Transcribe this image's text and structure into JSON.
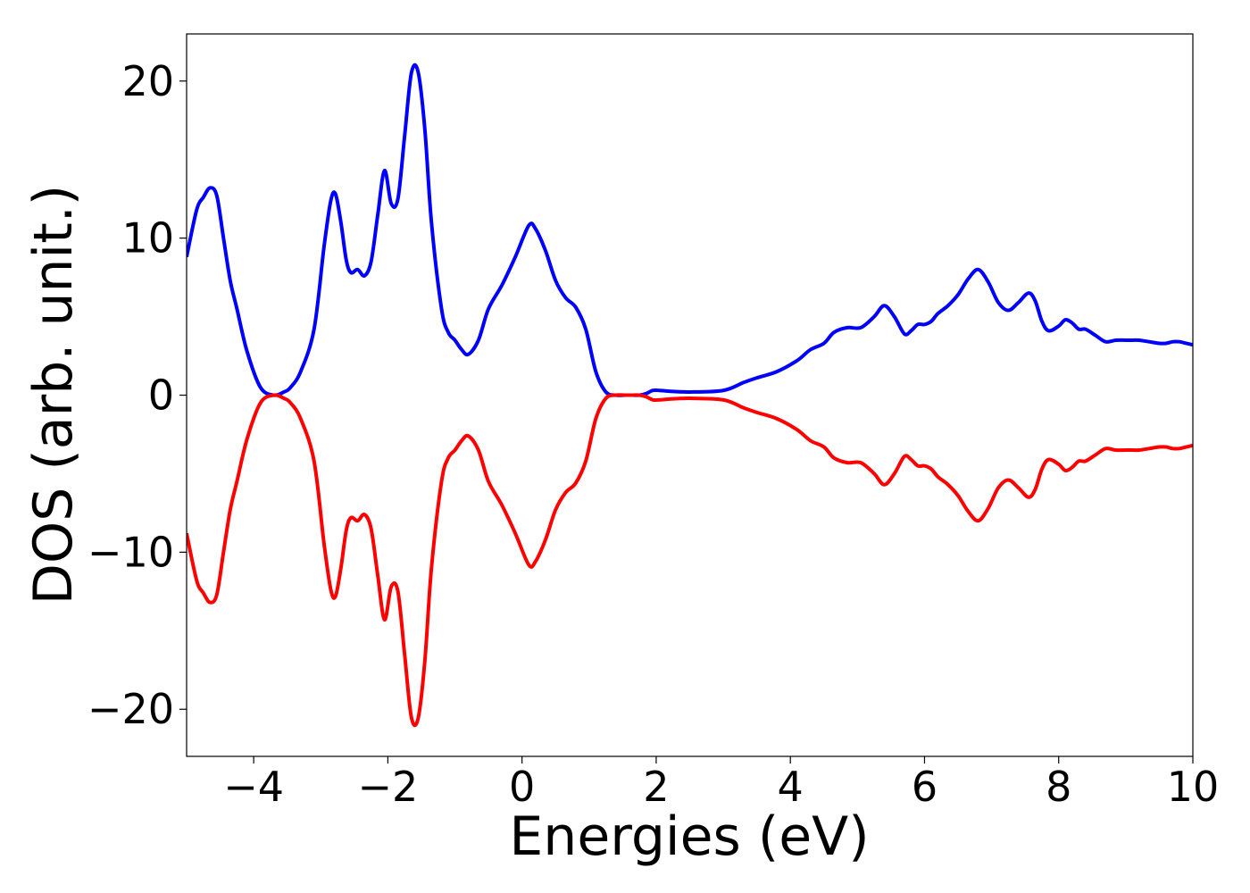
{
  "chart_data": {
    "type": "line",
    "title": "",
    "xlabel": "Energies (eV)",
    "ylabel": "DOS (arb. unit.)",
    "xlim": [
      -5,
      10
    ],
    "ylim": [
      -23,
      23
    ],
    "grid": false,
    "legend": "none",
    "xticks": [
      -4,
      -2,
      0,
      2,
      4,
      6,
      8,
      10
    ],
    "xtick_labels": [
      "−4",
      "−2",
      "0",
      "2",
      "4",
      "6",
      "8",
      "10"
    ],
    "yticks": [
      -20,
      -10,
      0,
      10,
      20
    ],
    "ytick_labels": [
      "−20",
      "−10",
      "0",
      "10",
      "20"
    ],
    "series": [
      {
        "color": "#0000ff",
        "x": [
          -5.0,
          -4.85,
          -4.75,
          -4.65,
          -4.55,
          -4.45,
          -4.35,
          -4.25,
          -4.1,
          -3.9,
          -3.7,
          -3.55,
          -3.45,
          -3.3,
          -3.1,
          -2.95,
          -2.85,
          -2.78,
          -2.7,
          -2.62,
          -2.55,
          -2.45,
          -2.35,
          -2.25,
          -2.15,
          -2.05,
          -1.95,
          -1.85,
          -1.75,
          -1.65,
          -1.55,
          -1.45,
          -1.35,
          -1.2,
          -1.1,
          -1.0,
          -0.9,
          -0.8,
          -0.65,
          -0.5,
          -0.3,
          -0.1,
          0.1,
          0.2,
          0.35,
          0.5,
          0.65,
          0.8,
          0.95,
          1.1,
          1.25,
          1.4,
          1.55,
          1.65,
          1.75,
          1.85,
          1.95,
          2.05,
          2.2,
          2.5,
          3.0,
          3.3,
          3.5,
          3.8,
          4.1,
          4.3,
          4.5,
          4.65,
          4.85,
          5.05,
          5.25,
          5.4,
          5.55,
          5.7,
          5.8,
          5.9,
          6.0,
          6.1,
          6.2,
          6.35,
          6.5,
          6.65,
          6.8,
          6.95,
          7.1,
          7.25,
          7.4,
          7.55,
          7.65,
          7.75,
          7.85,
          8.0,
          8.1,
          8.2,
          8.3,
          8.4,
          8.55,
          8.7,
          8.85,
          9.0,
          9.1,
          9.2,
          9.35,
          9.5,
          9.6,
          9.7,
          9.8,
          9.9,
          10.0
        ],
        "values": [
          8.8,
          11.8,
          12.6,
          13.2,
          12.7,
          10.0,
          7.3,
          5.5,
          2.8,
          0.5,
          0.0,
          0.2,
          0.5,
          1.5,
          4.2,
          9.5,
          12.4,
          12.8,
          11.0,
          8.6,
          7.8,
          8.0,
          7.6,
          8.5,
          11.5,
          14.3,
          12.2,
          12.5,
          16.5,
          20.5,
          20.6,
          17.0,
          11.0,
          5.5,
          4.0,
          3.5,
          2.9,
          2.6,
          3.5,
          5.5,
          7.0,
          8.8,
          10.8,
          10.6,
          9.2,
          7.3,
          6.2,
          5.6,
          4.2,
          1.5,
          0.2,
          0.0,
          0.0,
          0.0,
          0.0,
          0.1,
          0.3,
          0.3,
          0.25,
          0.2,
          0.3,
          0.8,
          1.1,
          1.5,
          2.2,
          2.9,
          3.3,
          4.0,
          4.3,
          4.3,
          5.0,
          5.7,
          5.0,
          3.9,
          4.1,
          4.5,
          4.5,
          4.7,
          5.2,
          5.7,
          6.4,
          7.4,
          8.0,
          7.2,
          5.9,
          5.4,
          5.9,
          6.5,
          6.0,
          4.7,
          4.1,
          4.4,
          4.8,
          4.6,
          4.2,
          4.2,
          3.8,
          3.4,
          3.5,
          3.5,
          3.5,
          3.5,
          3.4,
          3.3,
          3.3,
          3.4,
          3.4,
          3.3,
          3.2
        ]
      },
      {
        "color": "#ff0000",
        "x": [
          -5.0,
          -4.85,
          -4.75,
          -4.65,
          -4.55,
          -4.45,
          -4.35,
          -4.25,
          -4.1,
          -3.9,
          -3.7,
          -3.55,
          -3.45,
          -3.3,
          -3.1,
          -2.95,
          -2.85,
          -2.78,
          -2.7,
          -2.62,
          -2.55,
          -2.45,
          -2.35,
          -2.25,
          -2.15,
          -2.05,
          -1.95,
          -1.85,
          -1.75,
          -1.65,
          -1.55,
          -1.45,
          -1.35,
          -1.2,
          -1.1,
          -1.0,
          -0.9,
          -0.8,
          -0.65,
          -0.5,
          -0.3,
          -0.1,
          0.1,
          0.2,
          0.35,
          0.5,
          0.65,
          0.8,
          0.95,
          1.1,
          1.25,
          1.4,
          1.55,
          1.65,
          1.75,
          1.85,
          1.95,
          2.05,
          2.2,
          2.5,
          3.0,
          3.3,
          3.5,
          3.8,
          4.1,
          4.3,
          4.5,
          4.65,
          4.85,
          5.05,
          5.25,
          5.4,
          5.55,
          5.7,
          5.8,
          5.9,
          6.0,
          6.1,
          6.2,
          6.35,
          6.5,
          6.65,
          6.8,
          6.95,
          7.1,
          7.25,
          7.4,
          7.55,
          7.65,
          7.75,
          7.85,
          8.0,
          8.1,
          8.2,
          8.3,
          8.4,
          8.55,
          8.7,
          8.85,
          9.0,
          9.1,
          9.2,
          9.35,
          9.5,
          9.6,
          9.7,
          9.8,
          9.9,
          10.0
        ],
        "values": [
          -8.8,
          -11.8,
          -12.6,
          -13.2,
          -12.7,
          -10.0,
          -7.3,
          -5.5,
          -2.8,
          -0.5,
          0.0,
          -0.2,
          -0.5,
          -1.5,
          -4.2,
          -9.5,
          -12.4,
          -12.8,
          -11.0,
          -8.6,
          -7.8,
          -8.0,
          -7.6,
          -8.5,
          -11.5,
          -14.3,
          -12.2,
          -12.5,
          -16.5,
          -20.5,
          -20.6,
          -17.0,
          -11.0,
          -5.5,
          -4.0,
          -3.5,
          -2.9,
          -2.6,
          -3.5,
          -5.5,
          -7.0,
          -8.8,
          -10.8,
          -10.6,
          -9.2,
          -7.3,
          -6.2,
          -5.6,
          -4.2,
          -1.5,
          -0.2,
          0.0,
          0.0,
          0.0,
          0.0,
          -0.1,
          -0.3,
          -0.3,
          -0.25,
          -0.2,
          -0.3,
          -0.8,
          -1.1,
          -1.5,
          -2.2,
          -2.9,
          -3.3,
          -4.0,
          -4.3,
          -4.3,
          -5.0,
          -5.7,
          -5.0,
          -3.9,
          -4.1,
          -4.5,
          -4.5,
          -4.7,
          -5.2,
          -5.7,
          -6.4,
          -7.4,
          -8.0,
          -7.2,
          -5.9,
          -5.4,
          -5.9,
          -6.5,
          -6.0,
          -4.7,
          -4.1,
          -4.4,
          -4.8,
          -4.6,
          -4.2,
          -4.2,
          -3.8,
          -3.4,
          -3.5,
          -3.5,
          -3.5,
          -3.5,
          -3.4,
          -3.3,
          -3.3,
          -3.4,
          -3.4,
          -3.3,
          -3.2
        ]
      }
    ]
  }
}
